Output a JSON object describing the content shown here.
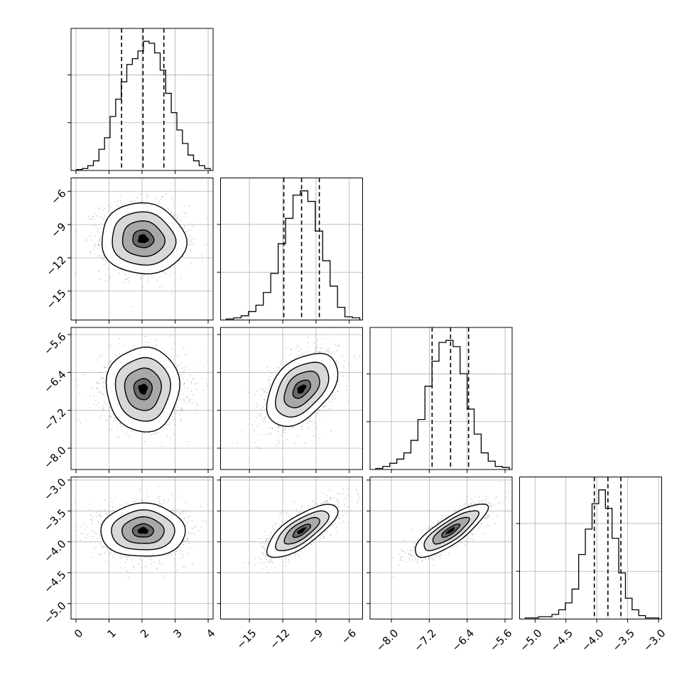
{
  "title": "",
  "chart_data": {
    "type": "corner",
    "parameters": [
      {
        "index": 0,
        "median": 2.03,
        "q16": 1.38,
        "q84": 2.66,
        "range": [
          -0.15,
          4.15
        ],
        "ticks": [
          0,
          1,
          2,
          3,
          4
        ],
        "tick_labels": [
          "0",
          "1",
          "2",
          "3",
          "4"
        ],
        "hist_counts": [
          1,
          2,
          5,
          10,
          22,
          34,
          56,
          74,
          92,
          110,
          116,
          124,
          134,
          132,
          122,
          104,
          80,
          60,
          42,
          28,
          16,
          10,
          5,
          2
        ]
      },
      {
        "index": 1,
        "median": -10.3,
        "q16": -11.9,
        "q84": -8.7,
        "range": [
          -17.6,
          -4.8
        ],
        "ticks": [
          -15,
          -12,
          -9,
          -6
        ],
        "tick_labels": [
          "−15",
          "−12",
          "−9",
          "−6"
        ],
        "hist_counts": [
          1,
          2,
          4,
          8,
          14,
          26,
          44,
          72,
          96,
          118,
          122,
          112,
          84,
          56,
          32,
          12,
          3,
          2
        ]
      },
      {
        "index": 2,
        "median": -6.75,
        "q16": -7.14,
        "q84": -6.37,
        "range": [
          -8.45,
          -5.45
        ],
        "ticks": [
          -8.0,
          -7.2,
          -6.4,
          -5.6
        ],
        "tick_labels": [
          "−8.0",
          "−7.2",
          "−6.4",
          "−5.6"
        ],
        "hist_counts": [
          1,
          3,
          6,
          10,
          16,
          28,
          48,
          80,
          104,
          122,
          124,
          118,
          92,
          58,
          34,
          16,
          8,
          3,
          2
        ]
      },
      {
        "index": 3,
        "median": -3.82,
        "q16": -4.04,
        "q84": -3.61,
        "range": [
          -5.25,
          -2.95
        ],
        "ticks": [
          -5.0,
          -4.5,
          -4.0,
          -3.5,
          -3.0
        ],
        "tick_labels": [
          "−5.0",
          "−4.5",
          "−4.0",
          "−3.5",
          "−3.0"
        ],
        "hist_counts": [
          1,
          1,
          2,
          2,
          4,
          8,
          14,
          26,
          56,
          78,
          100,
          112,
          96,
          70,
          40,
          18,
          8,
          3,
          1,
          1
        ]
      }
    ],
    "correlations": {
      "1-0": -0.05,
      "2-0": 0.0,
      "2-1": 0.45,
      "3-0": 0.0,
      "3-1": 0.75,
      "3-2": 0.82
    },
    "contour_levels_sigma": [
      0.5,
      1.0,
      1.5,
      2.0
    ],
    "colors": {
      "line": "#000000",
      "grid": "#b0b0b0",
      "points": "#9a9a9a"
    },
    "grid": true,
    "quantile_lines": "dashed"
  }
}
